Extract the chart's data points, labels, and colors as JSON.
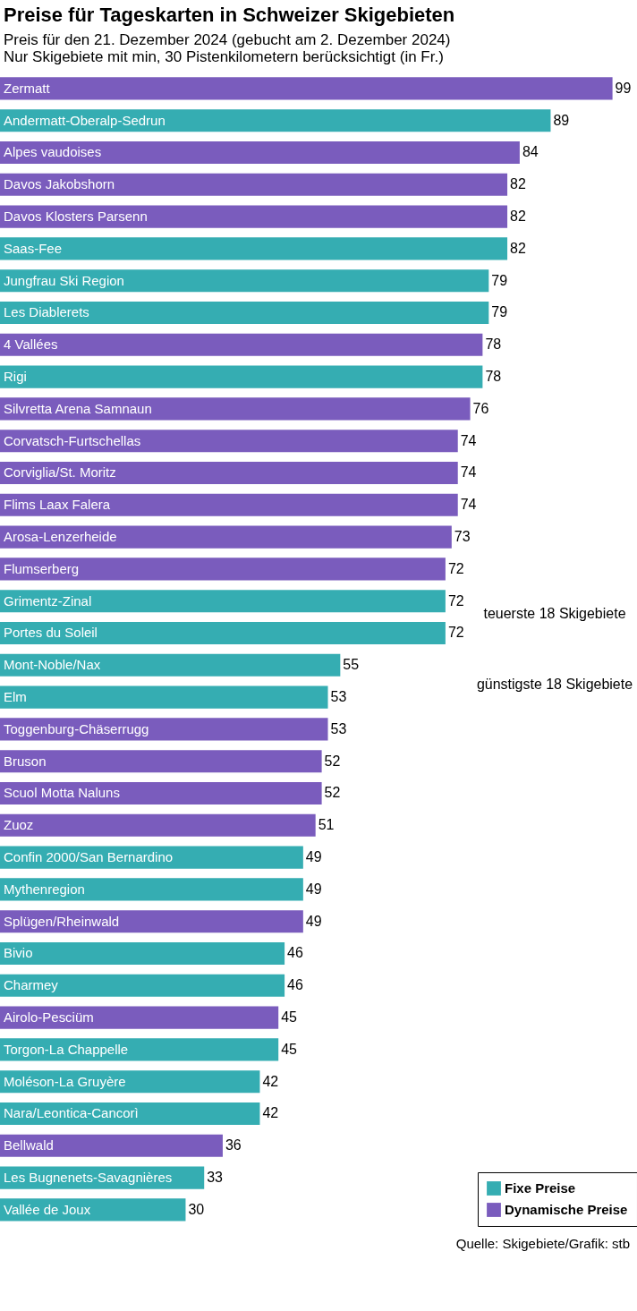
{
  "chart_data": {
    "type": "bar",
    "orientation": "horizontal",
    "title": "Preise für Tageskarten in  Schweizer Skigebieten",
    "subtitle": "Preis für den 21. Dezember 2024 (gebucht am 2. Dezember 2024)\nNur Skigebiete mit min, 30 Pistenkilometern berücksichtigt (in Fr.)",
    "categories": [
      "Zermatt",
      "Andermatt-Oberalp-Sedrun",
      "Alpes vaudoises",
      "Davos Jakobshorn",
      "Davos Klosters Parsenn",
      "Saas-Fee",
      "Jungfrau Ski Region",
      "Les Diablerets",
      "4 Vallées",
      "Rigi",
      "Silvretta Arena Samnaun",
      "Corvatsch-Furtschellas",
      "Corviglia/St. Moritz",
      "Flims Laax Falera",
      "Arosa-Lenzerheide",
      "Flumserberg",
      "Grimentz-Zinal",
      "Portes du Soleil",
      "Mont-Noble/Nax",
      "Elm",
      "Toggenburg-Chäserrugg",
      "Bruson",
      "Scuol Motta Naluns",
      "Zuoz",
      "Confin 2000/San Bernardino",
      "Mythenregion",
      "Splügen/Rheinwald",
      "Bivio",
      "Charmey",
      "Airolo-Pesciüm",
      "Torgon-La Chappelle",
      "Moléson-La Gruyère",
      "Nara/Leontica-Cancorì",
      "Bellwald",
      "Les Bugnenets-Savagnières",
      "Vallée de Joux"
    ],
    "series": [
      {
        "name": "Fixe Preise",
        "color": "#35adb2",
        "values": [
          null,
          89,
          null,
          null,
          null,
          82,
          79,
          79,
          null,
          78,
          null,
          null,
          null,
          null,
          null,
          null,
          72,
          72,
          55,
          53,
          null,
          null,
          null,
          null,
          49,
          49,
          null,
          46,
          46,
          null,
          45,
          42,
          42,
          null,
          33,
          30
        ]
      },
      {
        "name": "Dynamische Preise",
        "color": "#7a5cbd",
        "values": [
          99,
          null,
          84,
          82,
          82,
          null,
          null,
          null,
          78,
          null,
          76,
          74,
          74,
          74,
          73,
          72,
          null,
          null,
          null,
          null,
          53,
          52,
          52,
          51,
          null,
          null,
          49,
          null,
          null,
          45,
          null,
          null,
          null,
          36,
          null,
          null
        ]
      }
    ],
    "data_labels": true,
    "legend": "bottom right",
    "annotations": [
      "teuerste 18 Skigebiete",
      "günstigste 18 Skigebiete",
      "Quelle: Skigebiete/Grafik: stb"
    ]
  }
}
